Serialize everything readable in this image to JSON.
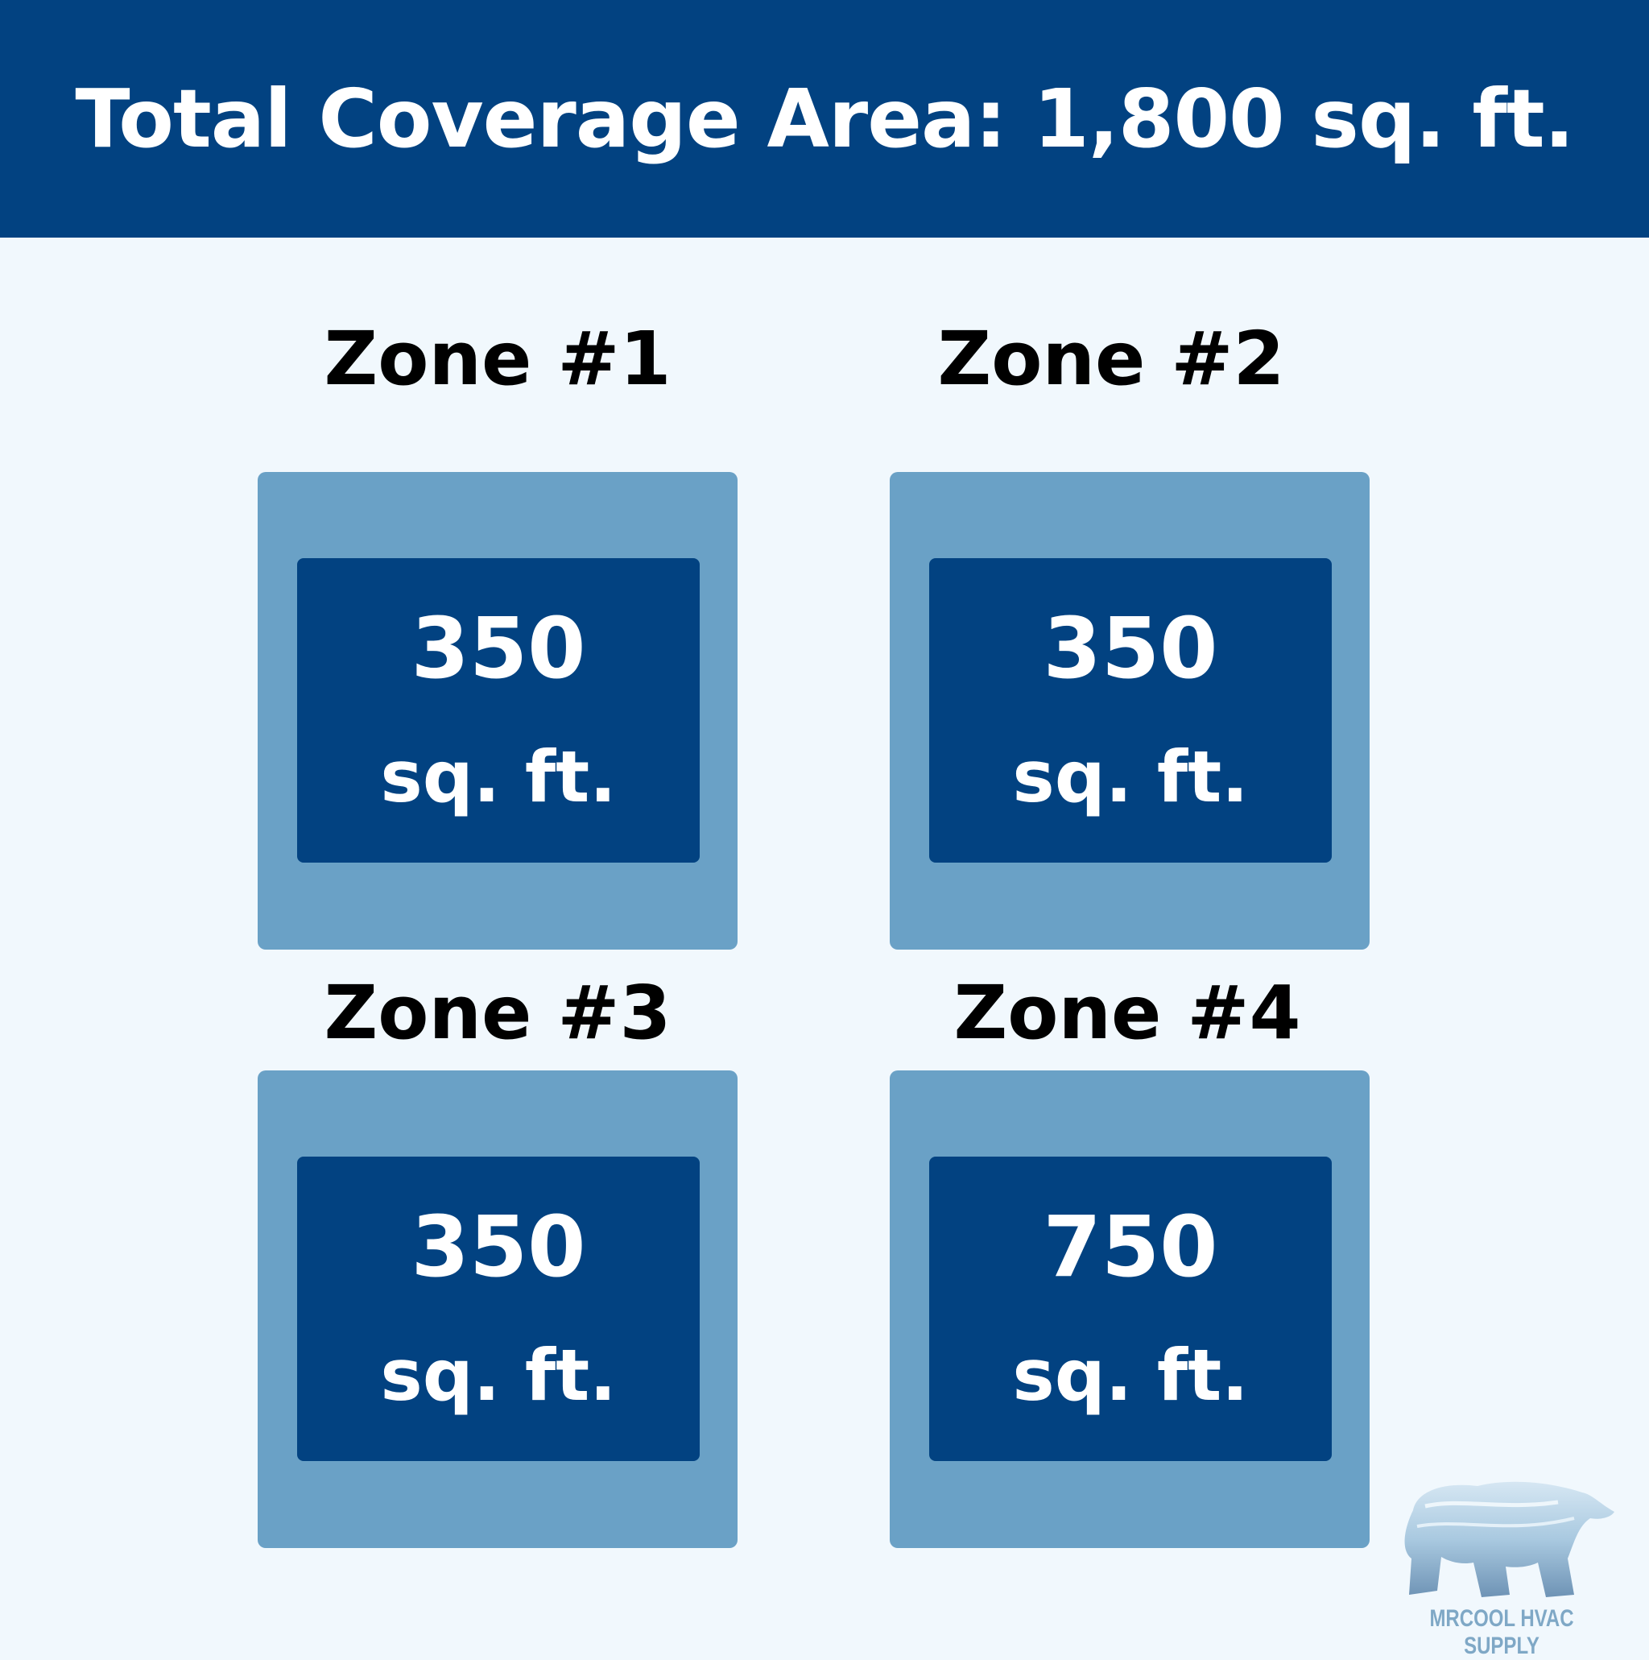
{
  "header": {
    "title": "Total Coverage Area: 1,800 sq. ft."
  },
  "zones": [
    {
      "label": "Zone #1",
      "value": "350",
      "unit": "sq. ft."
    },
    {
      "label": "Zone #2",
      "value": "350",
      "unit": "sq. ft."
    },
    {
      "label": "Zone #3",
      "value": "350",
      "unit": "sq. ft."
    },
    {
      "label": "Zone #4",
      "value": "750",
      "unit": "sq. ft."
    }
  ],
  "logo": {
    "text": "MRCOOL HVAC SUPPLY",
    "icon": "polar-bear-icon"
  },
  "colors": {
    "header": "#024281",
    "outer_box": "#6aa1c6",
    "inner_box": "#024281",
    "background": "#f1f8fd"
  }
}
